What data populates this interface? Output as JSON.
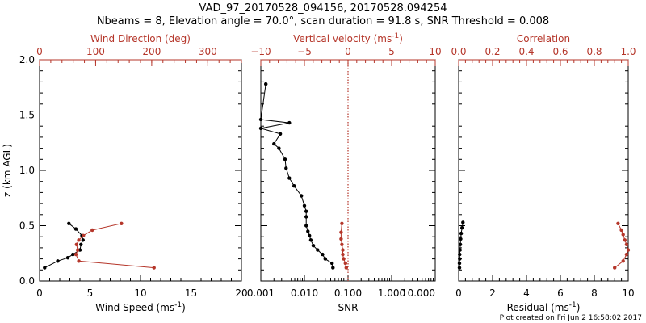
{
  "title_line1": "VAD_97_20170528_094156, 20170528.094254",
  "title_line2": "Nbeams = 8, Elevation angle = 70.0°, scan duration = 91.8 s, SNR Threshold = 0.008",
  "footer": "Plot created on Fri Jun  2 16:58:02 2017",
  "colors": {
    "primary": "#000000",
    "secondary": "#b5362a"
  },
  "ylabel": "z (km AGL)",
  "chart_data": [
    {
      "type": "line",
      "panel": "left",
      "ylim": [
        0,
        2.0
      ],
      "yticks": [
        0.0,
        0.5,
        1.0,
        1.5,
        2.0
      ],
      "ytick_labels": [
        "0.0",
        "0.5",
        "1.0",
        "1.5",
        "2.0"
      ],
      "bottom_axis": {
        "label": "Wind Speed (ms",
        "label_sup": "-1",
        "label_end": ")",
        "range": [
          0,
          20
        ],
        "ticks": [
          0,
          5,
          10,
          15,
          20
        ],
        "tick_labels": [
          "0",
          "5",
          "10",
          "15",
          "20"
        ]
      },
      "top_axis": {
        "label": "Wind Direction (deg)",
        "range": [
          0,
          360
        ],
        "ticks": [
          0,
          100,
          200,
          300
        ],
        "tick_labels": [
          "0",
          "100",
          "200",
          "300"
        ]
      },
      "series": [
        {
          "axis": "bottom",
          "color": "#000000",
          "x": [
            0.5,
            1.8,
            2.8,
            3.3,
            4.0,
            4.1,
            4.3,
            4.2,
            3.6,
            2.9
          ],
          "y": [
            0.12,
            0.18,
            0.21,
            0.24,
            0.28,
            0.33,
            0.37,
            0.41,
            0.47,
            0.52
          ]
        },
        {
          "axis": "top",
          "color": "#b5362a",
          "x": [
            204,
            70,
            65,
            68,
            66,
            70,
            78,
            94,
            146
          ],
          "y": [
            0.12,
            0.18,
            0.24,
            0.28,
            0.33,
            0.37,
            0.41,
            0.46,
            0.52
          ]
        }
      ]
    },
    {
      "type": "line",
      "panel": "middle",
      "ylim": [
        0,
        2.0
      ],
      "bottom_axis": {
        "label": "SNR",
        "scale": "log",
        "range": [
          0.001,
          10
        ],
        "ticks": [
          0.001,
          0.01,
          0.1,
          1,
          10
        ],
        "tick_labels": [
          "0.001",
          "0.010",
          "0.100",
          "1.000",
          "10.000"
        ]
      },
      "top_axis": {
        "label": "Vertical velocity (ms",
        "label_sup": "-1",
        "label_end": ")",
        "range": [
          -10,
          10
        ],
        "ticks": [
          -10,
          -5,
          0,
          5,
          10
        ],
        "tick_labels": [
          "−10",
          "−5",
          "0",
          "5",
          "10"
        ]
      },
      "series": [
        {
          "axis": "bottom",
          "color": "#000000",
          "x": [
            0.045,
            0.043,
            0.03,
            0.026,
            0.02,
            0.016,
            0.014,
            0.013,
            0.012,
            0.011,
            0.011,
            0.011,
            0.01,
            0.0085,
            0.0058,
            0.0045,
            0.0038,
            0.0036,
            0.0026,
            0.002,
            0.0028,
            0.001,
            0.0045,
            0.001,
            0.0013
          ],
          "y": [
            0.12,
            0.16,
            0.2,
            0.24,
            0.28,
            0.32,
            0.37,
            0.41,
            0.45,
            0.5,
            0.58,
            0.63,
            0.68,
            0.77,
            0.86,
            0.93,
            1.02,
            1.1,
            1.2,
            1.24,
            1.33,
            1.38,
            1.43,
            1.46,
            1.78
          ]
        },
        {
          "axis": "top",
          "color": "#b5362a",
          "x": [
            -0.2,
            -0.3,
            -0.5,
            -0.6,
            -0.6,
            -0.7,
            -0.8,
            -0.8,
            -0.7
          ],
          "y": [
            0.12,
            0.16,
            0.2,
            0.24,
            0.28,
            0.33,
            0.38,
            0.44,
            0.52
          ]
        }
      ],
      "reference_line": {
        "axis": "top",
        "x": 0,
        "style": "dotted",
        "color": "#b5362a"
      }
    },
    {
      "type": "line",
      "panel": "right",
      "ylim": [
        0,
        2.0
      ],
      "bottom_axis": {
        "label": "Residual (ms",
        "label_sup": "-1",
        "label_end": ")",
        "range": [
          0,
          10
        ],
        "ticks": [
          0,
          2,
          4,
          6,
          8,
          10
        ],
        "tick_labels": [
          "0",
          "2",
          "4",
          "6",
          "8",
          "10"
        ]
      },
      "top_axis": {
        "label": "Correlation",
        "range": [
          0,
          1.0
        ],
        "ticks": [
          0,
          0.2,
          0.4,
          0.6,
          0.8,
          1.0
        ],
        "tick_labels": [
          "0.0",
          "0.2",
          "0.4",
          "0.6",
          "0.8",
          "1.0"
        ]
      },
      "series": [
        {
          "axis": "bottom",
          "color": "#000000",
          "x": [
            0.05,
            0.05,
            0.06,
            0.06,
            0.08,
            0.1,
            0.12,
            0.15,
            0.2,
            0.25
          ],
          "y": [
            0.12,
            0.16,
            0.2,
            0.24,
            0.28,
            0.33,
            0.38,
            0.43,
            0.48,
            0.53
          ]
        },
        {
          "axis": "top",
          "color": "#b5362a",
          "x": [
            0.92,
            0.97,
            0.99,
            1.0,
            0.99,
            0.98,
            0.97,
            0.96,
            0.94
          ],
          "y": [
            0.12,
            0.18,
            0.24,
            0.28,
            0.33,
            0.37,
            0.42,
            0.46,
            0.52
          ]
        }
      ]
    }
  ]
}
